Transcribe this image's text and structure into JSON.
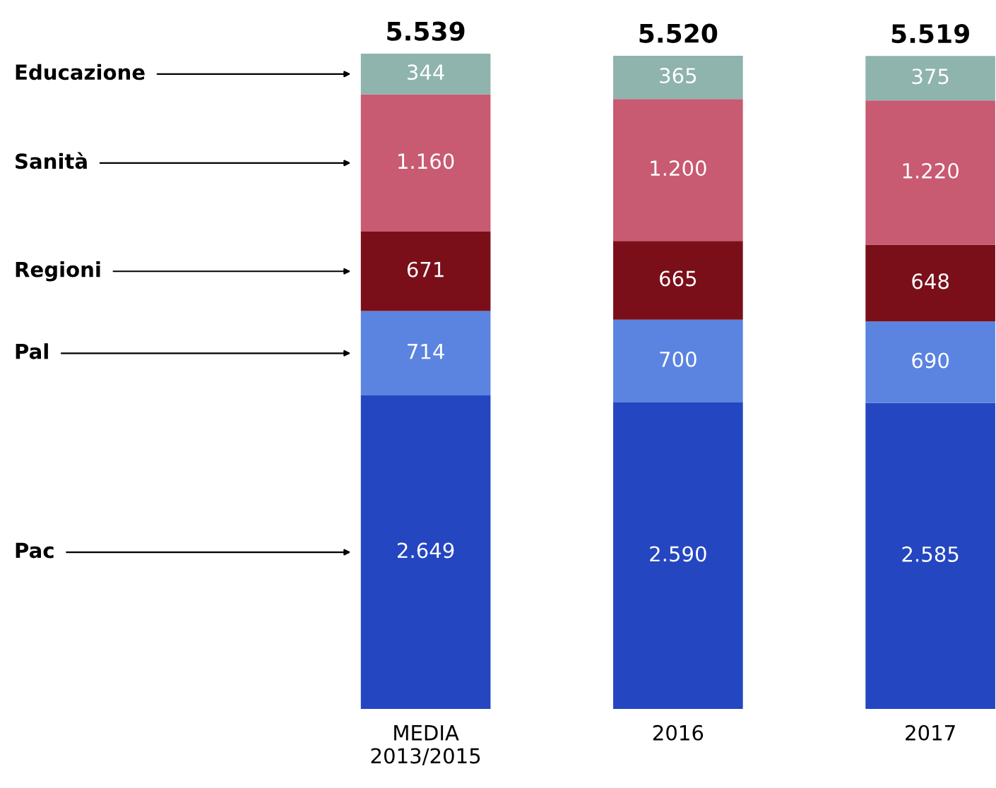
{
  "chart_data": {
    "type": "bar",
    "stacked": true,
    "categories": [
      "MEDIA\n2013/2015",
      "2016",
      "2017"
    ],
    "series": [
      {
        "name": "Pac",
        "color": "#2446c0",
        "values": [
          2649,
          2590,
          2585
        ],
        "value_labels": [
          "2.649",
          "2.590",
          "2.585"
        ]
      },
      {
        "name": "Pal",
        "color": "#5b83e0",
        "values": [
          714,
          700,
          690
        ],
        "value_labels": [
          "714",
          "700",
          "690"
        ]
      },
      {
        "name": "Regioni",
        "color": "#7a0f1a",
        "values": [
          671,
          665,
          648
        ],
        "value_labels": [
          "671",
          "665",
          "648"
        ]
      },
      {
        "name": "Sanità",
        "color": "#c85a72",
        "values": [
          1160,
          1200,
          1220
        ],
        "value_labels": [
          "1.160",
          "1.200",
          "1.220"
        ]
      },
      {
        "name": "Educazione",
        "color": "#8fb3ad",
        "values": [
          344,
          365,
          375
        ],
        "value_labels": [
          "344",
          "365",
          "375"
        ]
      }
    ],
    "totals": [
      "5.539",
      "5.520",
      "5.519"
    ]
  }
}
